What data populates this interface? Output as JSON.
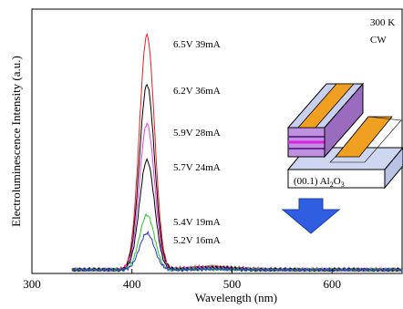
{
  "chart_data": {
    "type": "line",
    "xlabel": "Wavelength (nm)",
    "ylabel": "Electroluminescence Intensity (a.u.)",
    "xlim": [
      300,
      670
    ],
    "xticks": [
      300,
      400,
      500,
      600
    ],
    "yticks": false,
    "annotations": [
      "300 K",
      "CW"
    ],
    "inset": {
      "substrate_label": "(00.1) Al",
      "substrate_sub": "2",
      "substrate_mid": "O",
      "substrate_sub2": "3"
    },
    "peak_position_nm": 415,
    "series": [
      {
        "label": "6.5V  39mA",
        "color": "#e8201e",
        "peak": 0.9
      },
      {
        "label": "6.2V  36mA",
        "color": "#000000",
        "peak": 0.71
      },
      {
        "label": "5.9V  28mA",
        "color": "#e040e8",
        "peak": 0.56
      },
      {
        "label": "5.7V  24mA",
        "color": "#000000",
        "peak": 0.42
      },
      {
        "label": "5.4V  19mA",
        "color": "#28c828",
        "peak": 0.21
      },
      {
        "label": "5.2V  16mA",
        "color": "#3030e0",
        "peak": 0.14
      }
    ]
  }
}
